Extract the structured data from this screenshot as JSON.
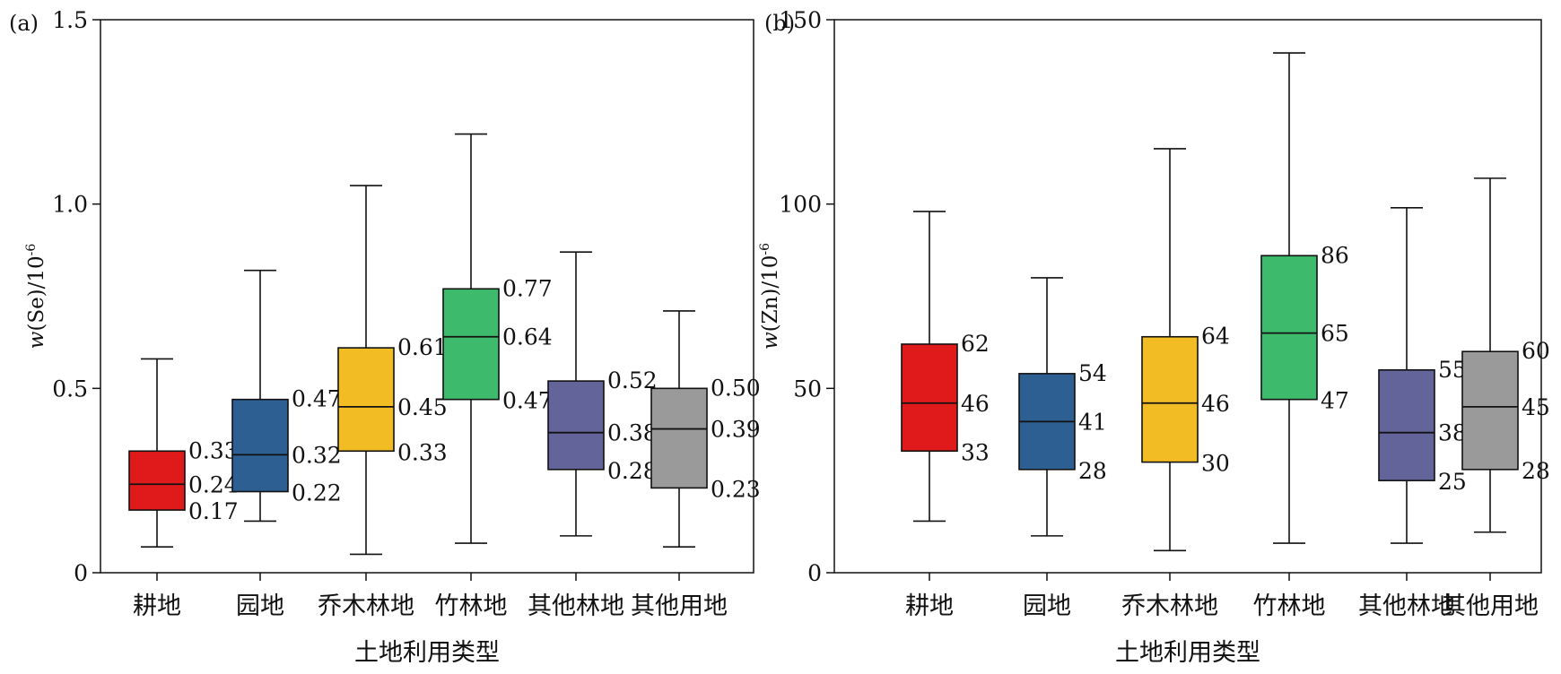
{
  "chart_data": [
    {
      "panel_label": "(a)",
      "type": "box",
      "xlabel": "土地利用类型",
      "ylabel": {
        "prefix": "w",
        "rest": "(Se)/10",
        "exp": "-6"
      },
      "ylim": [
        0,
        1.5
      ],
      "yticks": [
        "0",
        "0.5",
        "1.0",
        "1.5"
      ],
      "ytick_values": [
        0,
        0.5,
        1.0,
        1.5
      ],
      "categories": [
        "耕地",
        "园地",
        "乔木林地",
        "竹林地",
        "其他林地",
        "其他用地"
      ],
      "colors": [
        "#e0191b",
        "#2d5f93",
        "#f2bd24",
        "#3dba6b",
        "#62649a",
        "#9a9a9a"
      ],
      "boxes": [
        {
          "whisker_low": 0.07,
          "q1": 0.17,
          "median": 0.24,
          "q3": 0.33,
          "whisker_high": 0.58,
          "labels": [
            "0.33",
            "0.24",
            "0.17"
          ]
        },
        {
          "whisker_low": 0.14,
          "q1": 0.22,
          "median": 0.32,
          "q3": 0.47,
          "whisker_high": 0.82,
          "labels": [
            "0.47",
            "0.32",
            "0.22"
          ]
        },
        {
          "whisker_low": 0.05,
          "q1": 0.33,
          "median": 0.45,
          "q3": 0.61,
          "whisker_high": 1.05,
          "labels": [
            "0.61",
            "0.45",
            "0.33"
          ]
        },
        {
          "whisker_low": 0.08,
          "q1": 0.47,
          "median": 0.64,
          "q3": 0.77,
          "whisker_high": 1.19,
          "labels": [
            "0.77",
            "0.64",
            "0.47"
          ]
        },
        {
          "whisker_low": 0.1,
          "q1": 0.28,
          "median": 0.38,
          "q3": 0.52,
          "whisker_high": 0.87,
          "labels": [
            "0.52",
            "0.38",
            "0.28"
          ]
        },
        {
          "whisker_low": 0.07,
          "q1": 0.23,
          "median": 0.39,
          "q3": 0.5,
          "whisker_high": 0.71,
          "labels": [
            "0.50",
            "0.39",
            "0.23"
          ]
        }
      ]
    },
    {
      "panel_label": "(b)",
      "type": "box",
      "xlabel": "土地利用类型",
      "ylabel": {
        "prefix": "w",
        "rest": "(Zn)/10",
        "exp": "-6"
      },
      "ylim": [
        0,
        150
      ],
      "yticks": [
        "0",
        "50",
        "100",
        "150"
      ],
      "ytick_values": [
        0,
        50,
        100,
        150
      ],
      "categories": [
        "耕地",
        "园地",
        "乔木林地",
        "竹林地",
        "其他林地",
        "其他用地"
      ],
      "colors": [
        "#e0191b",
        "#2d5f93",
        "#f2bd24",
        "#3dba6b",
        "#62649a",
        "#9a9a9a"
      ],
      "boxes": [
        {
          "whisker_low": 14,
          "q1": 33,
          "median": 46,
          "q3": 62,
          "whisker_high": 98,
          "labels": [
            "62",
            "46",
            "33"
          ]
        },
        {
          "whisker_low": 10,
          "q1": 28,
          "median": 41,
          "q3": 54,
          "whisker_high": 80,
          "labels": [
            "54",
            "41",
            "28"
          ]
        },
        {
          "whisker_low": 6,
          "q1": 30,
          "median": 46,
          "q3": 64,
          "whisker_high": 115,
          "labels": [
            "64",
            "46",
            "30"
          ]
        },
        {
          "whisker_low": 8,
          "q1": 47,
          "median": 65,
          "q3": 86,
          "whisker_high": 141,
          "labels": [
            "86",
            "65",
            "47"
          ]
        },
        {
          "whisker_low": 8,
          "q1": 25,
          "median": 38,
          "q3": 55,
          "whisker_high": 99,
          "labels": [
            "55",
            "38",
            "25"
          ]
        },
        {
          "whisker_low": 11,
          "q1": 28,
          "median": 45,
          "q3": 60,
          "whisker_high": 107,
          "labels": [
            "60",
            "45",
            "28"
          ]
        }
      ]
    }
  ]
}
